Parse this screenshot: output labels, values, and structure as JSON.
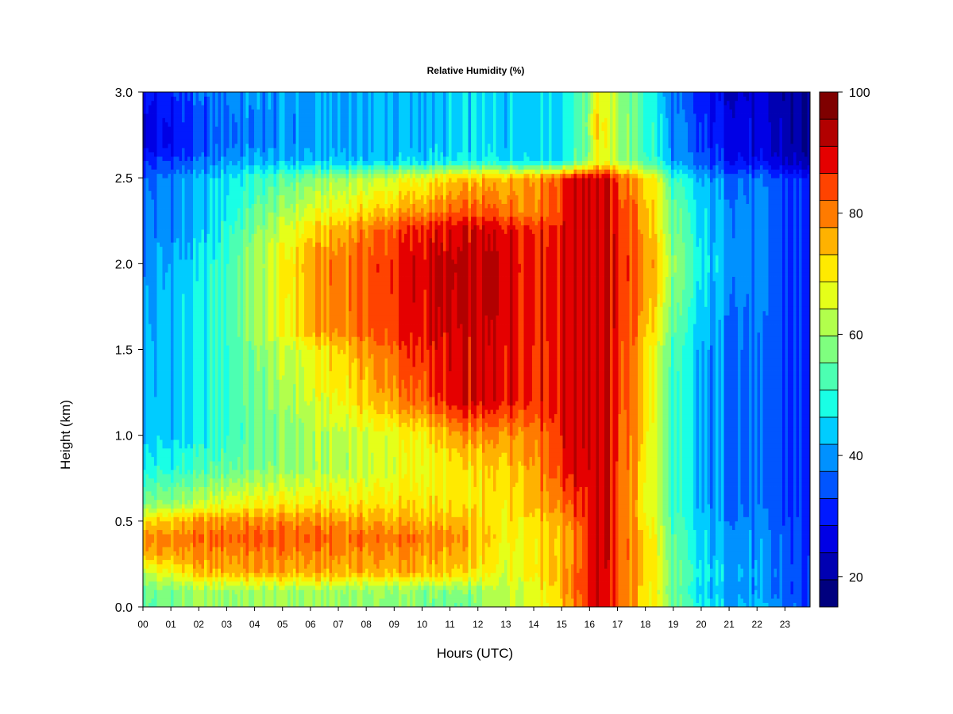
{
  "chart_data": {
    "type": "heatmap",
    "title": "Relative Humidity (%)",
    "xlabel": "Hours (UTC)",
    "ylabel": "Height (km)",
    "x_ticks": [
      "00",
      "01",
      "02",
      "03",
      "04",
      "05",
      "06",
      "07",
      "08",
      "09",
      "10",
      "11",
      "12",
      "13",
      "14",
      "15",
      "16",
      "17",
      "18",
      "19",
      "20",
      "21",
      "22",
      "23"
    ],
    "xlim": [
      0,
      23.9
    ],
    "y_ticks": [
      "0.0",
      "0.5",
      "1.0",
      "1.5",
      "2.0",
      "2.5",
      "3.0"
    ],
    "ylim": [
      0,
      3.0
    ],
    "colorbar": {
      "ticks": [
        "20",
        "40",
        "60",
        "80",
        "100"
      ],
      "range": [
        15,
        100
      ],
      "level_step": 5,
      "colors": [
        "#00007f",
        "#0000b2",
        "#0000e5",
        "#0019ff",
        "#0055ff",
        "#0091ff",
        "#00ccff",
        "#19ffe5",
        "#4cffb2",
        "#7fff7f",
        "#b2ff4c",
        "#e5ff19",
        "#ffea00",
        "#ffb200",
        "#ff7b00",
        "#ff4300",
        "#e50000",
        "#b20000",
        "#7f0000"
      ]
    },
    "profiles": {
      "heights_km": [
        0.0,
        0.1,
        0.2,
        0.3,
        0.4,
        0.5,
        0.6,
        0.8,
        1.0,
        1.2,
        1.5,
        1.6,
        2.0,
        2.2,
        2.3,
        2.5,
        2.6,
        2.7,
        2.8,
        3.0
      ],
      "hours": [
        0,
        2,
        3,
        6,
        10,
        11.5,
        13,
        14,
        15,
        15.2,
        15.5,
        16,
        16.2,
        16.6,
        17.5,
        18.4,
        18.9,
        20,
        22,
        23.9
      ],
      "rh": [
        [
          58,
          66,
          65,
          66,
          62,
          58,
          70,
          74,
          80,
          84,
          88,
          98,
          100,
          96,
          84,
          74,
          62,
          50,
          45,
          35
        ],
        [
          60,
          66,
          66,
          66,
          64,
          62,
          70,
          74,
          82,
          86,
          90,
          98,
          100,
          96,
          84,
          74,
          60,
          48,
          42,
          34
        ],
        [
          68,
          80,
          83,
          83,
          82,
          78,
          72,
          78,
          84,
          86,
          90,
          98,
          100,
          96,
          86,
          75,
          62,
          50,
          43,
          35
        ],
        [
          82,
          85,
          86,
          86,
          84,
          80,
          74,
          78,
          82,
          84,
          88,
          98,
          100,
          98,
          86,
          74,
          60,
          48,
          42,
          34
        ],
        [
          86,
          88,
          90,
          90,
          88,
          84,
          76,
          78,
          82,
          84,
          88,
          98,
          100,
          98,
          86,
          74,
          60,
          48,
          42,
          34
        ],
        [
          78,
          84,
          86,
          86,
          82,
          80,
          76,
          80,
          84,
          86,
          90,
          98,
          100,
          98,
          84,
          72,
          58,
          46,
          40,
          34
        ],
        [
          62,
          68,
          74,
          77,
          78,
          76,
          78,
          84,
          88,
          90,
          94,
          98,
          100,
          98,
          84,
          70,
          56,
          44,
          38,
          32
        ],
        [
          52,
          56,
          60,
          66,
          74,
          76,
          80,
          86,
          94,
          98,
          99,
          100,
          100,
          98,
          86,
          70,
          56,
          44,
          38,
          32
        ],
        [
          46,
          50,
          56,
          66,
          76,
          84,
          86,
          88,
          96,
          99,
          100,
          100,
          100,
          98,
          88,
          70,
          56,
          44,
          38,
          32
        ],
        [
          46,
          50,
          56,
          70,
          90,
          98,
          98,
          96,
          98,
          99,
          100,
          100,
          100,
          99,
          88,
          72,
          56,
          44,
          38,
          32
        ],
        [
          45,
          50,
          56,
          74,
          96,
          98,
          98,
          96,
          98,
          99,
          100,
          100,
          100,
          99,
          88,
          72,
          58,
          44,
          38,
          32
        ],
        [
          44,
          50,
          56,
          82,
          98,
          99,
          99,
          97,
          98,
          99,
          100,
          100,
          100,
          99,
          90,
          76,
          60,
          46,
          38,
          32
        ],
        [
          42,
          48,
          56,
          84,
          99,
          100,
          100,
          98,
          98,
          99,
          100,
          100,
          100,
          99,
          92,
          82,
          66,
          50,
          40,
          32
        ],
        [
          40,
          46,
          54,
          78,
          96,
          98,
          98,
          96,
          97,
          98,
          100,
          100,
          100,
          99,
          90,
          78,
          62,
          48,
          40,
          32
        ],
        [
          40,
          46,
          52,
          72,
          86,
          90,
          90,
          88,
          94,
          98,
          100,
          100,
          100,
          98,
          90,
          78,
          62,
          48,
          40,
          32
        ],
        [
          38,
          44,
          50,
          62,
          74,
          80,
          82,
          86,
          92,
          96,
          100,
          100,
          100,
          98,
          86,
          74,
          56,
          44,
          38,
          32
        ],
        [
          32,
          38,
          44,
          46,
          48,
          50,
          50,
          50,
          50,
          52,
          58,
          66,
          74,
          70,
          62,
          54,
          44,
          36,
          28,
          22
        ],
        [
          25,
          34,
          40,
          44,
          46,
          48,
          48,
          50,
          50,
          52,
          56,
          64,
          78,
          72,
          62,
          52,
          42,
          34,
          26,
          20
        ],
        [
          26,
          34,
          40,
          44,
          46,
          48,
          48,
          50,
          50,
          52,
          56,
          66,
          82,
          72,
          62,
          52,
          42,
          34,
          26,
          20
        ],
        [
          30,
          38,
          42,
          44,
          46,
          48,
          48,
          50,
          50,
          52,
          56,
          64,
          76,
          70,
          60,
          50,
          40,
          30,
          24,
          20
        ]
      ]
    }
  }
}
